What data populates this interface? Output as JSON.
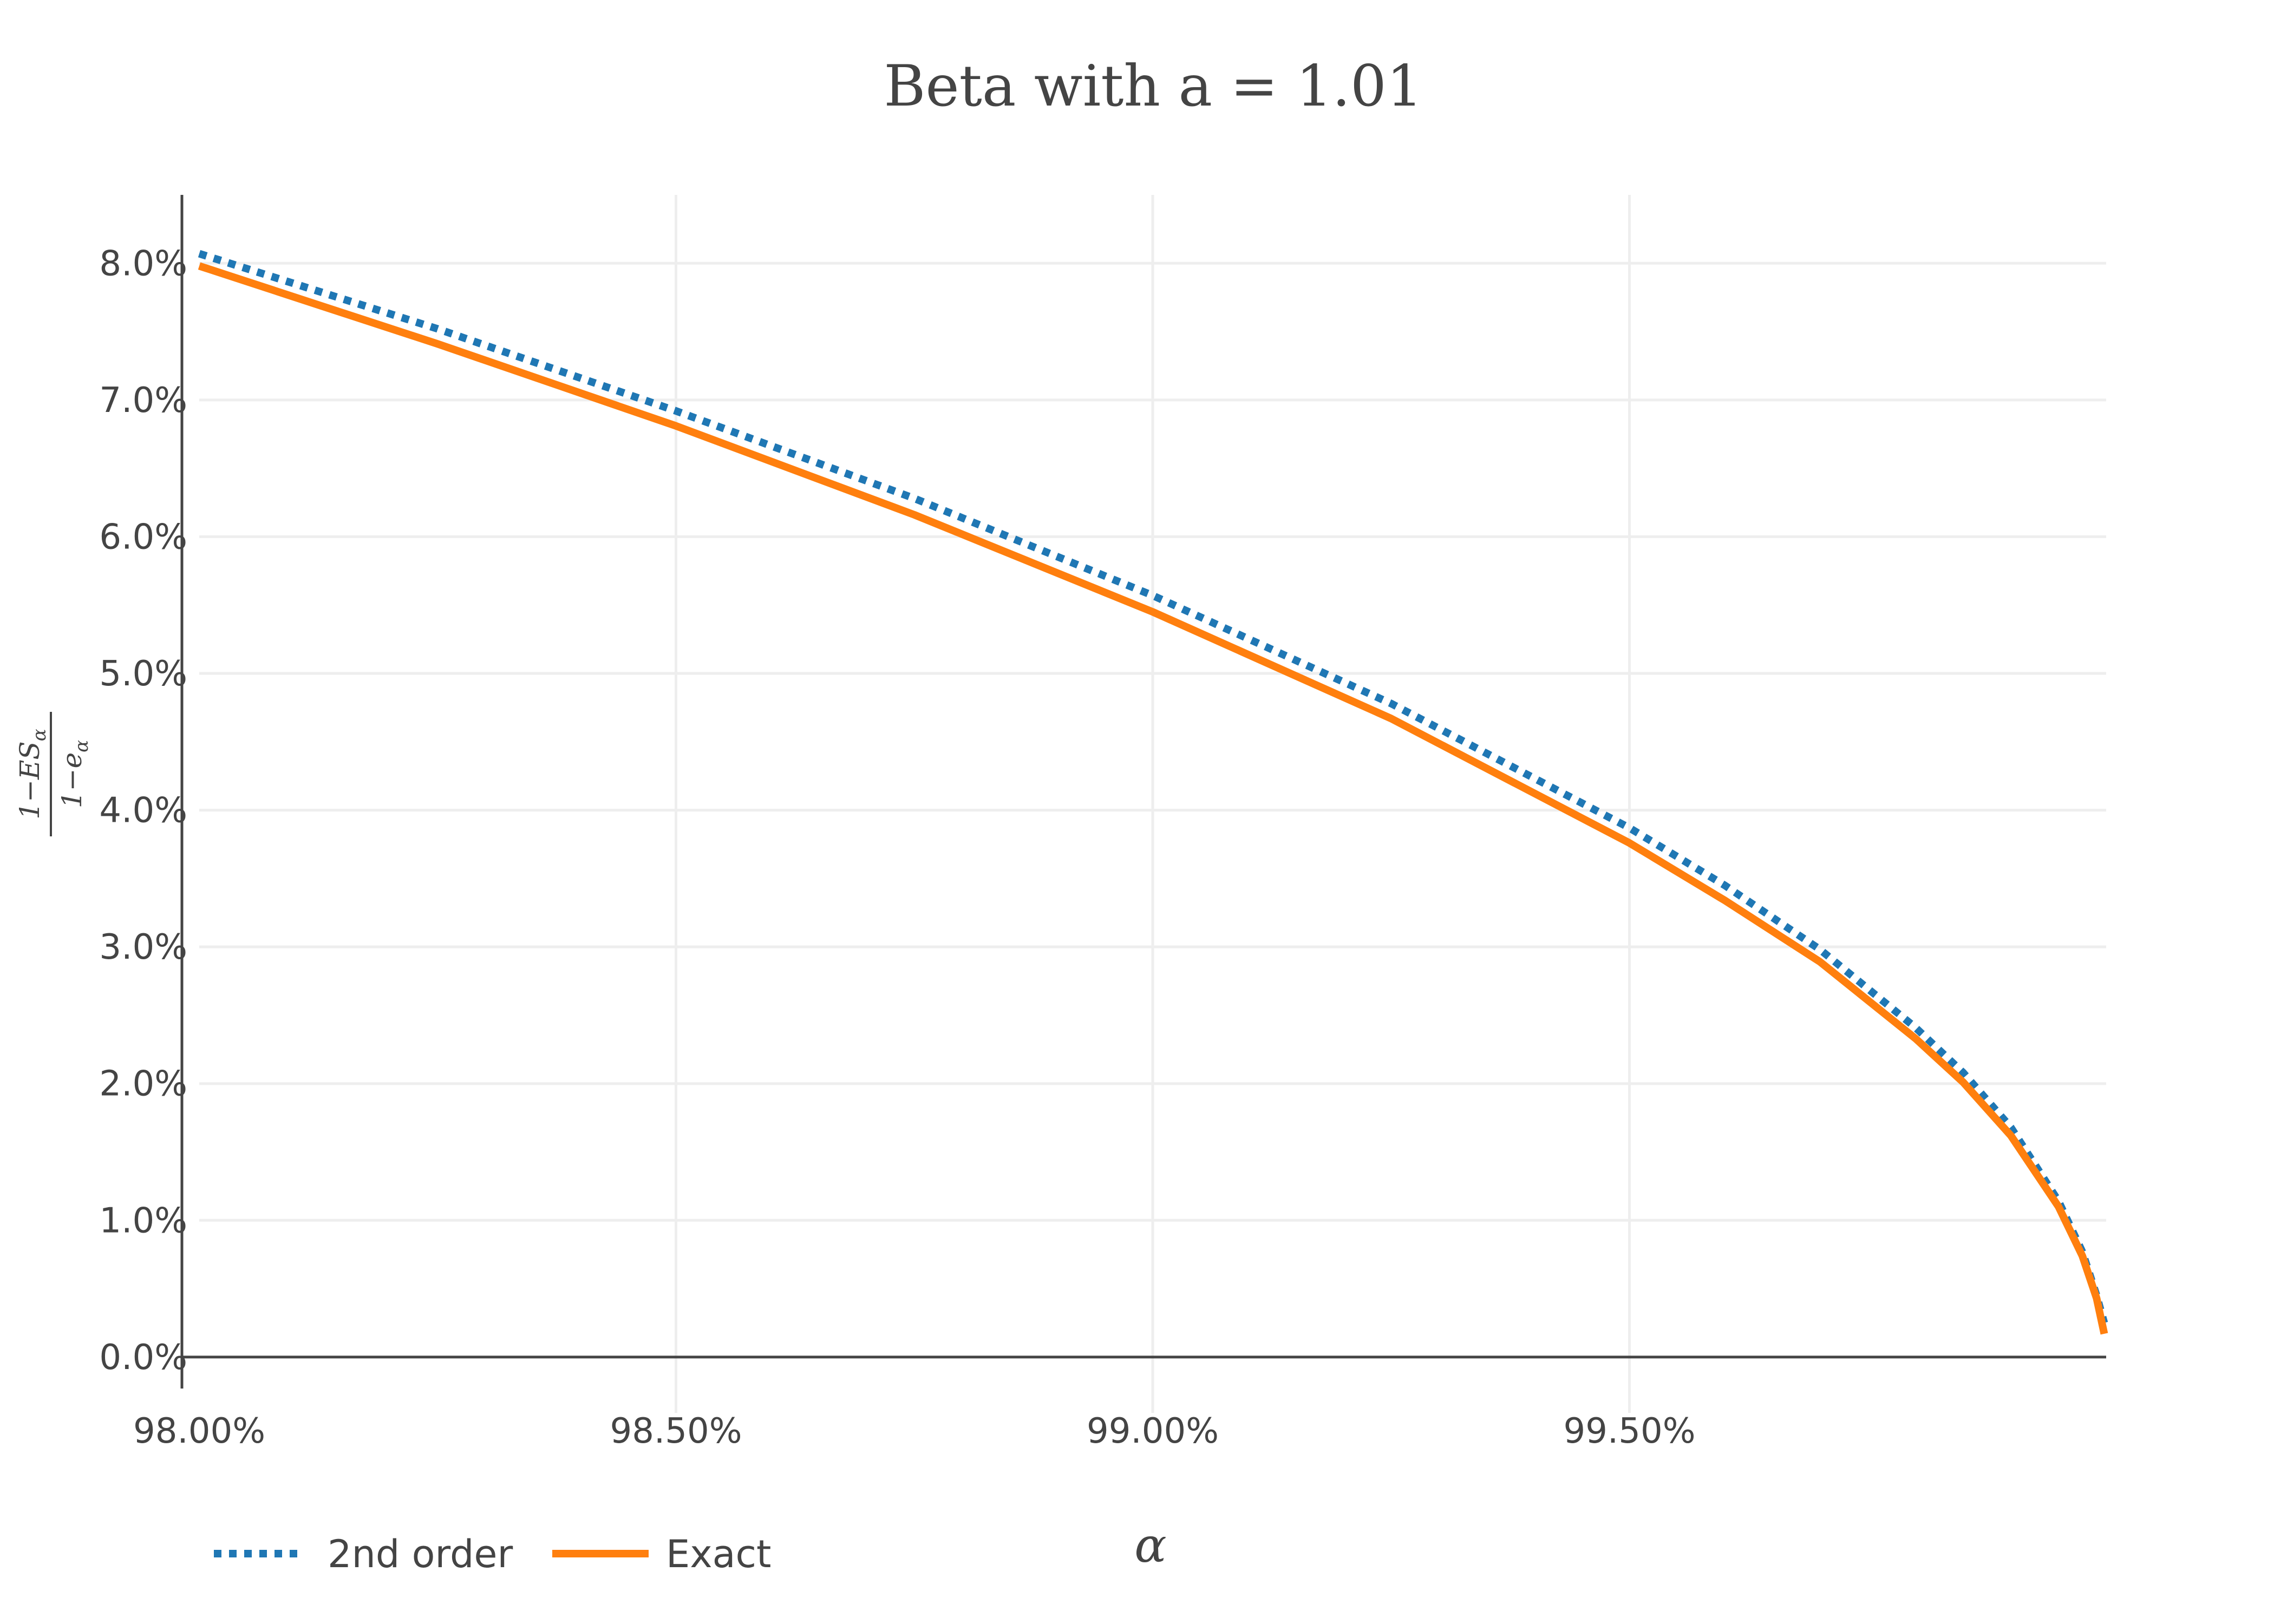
{
  "chart_data": {
    "type": "line",
    "title": "Beta with a = 1.01",
    "xlabel": "α",
    "ylabel_numerator": "1−ES",
    "ylabel_numerator_sub": "α",
    "ylabel_denominator": "1−e",
    "ylabel_denominator_sub": "α",
    "xlim": [
      0.98,
      1.0
    ],
    "ylim": [
      -0.0025,
      0.085
    ],
    "x_ticks": [
      0.98,
      0.985,
      0.99,
      0.995
    ],
    "x_tick_labels": [
      "98.00%",
      "98.50%",
      "99.00%",
      "99.50%"
    ],
    "y_ticks": [
      0.0,
      0.01,
      0.02,
      0.03,
      0.04,
      0.05,
      0.06,
      0.07,
      0.08
    ],
    "y_tick_labels": [
      "0.0%",
      "1.0%",
      "2.0%",
      "3.0%",
      "4.0%",
      "5.0%",
      "6.0%",
      "7.0%",
      "8.0%"
    ],
    "grid": true,
    "legend_position": "bottom-left",
    "series": [
      {
        "name": "2nd order",
        "color": "#1f77b4",
        "dash": "dot",
        "x": [
          0.98,
          0.9825,
          0.985,
          0.9875,
          0.99,
          0.9925,
          0.995,
          0.996,
          0.997,
          0.998,
          0.9985,
          0.999,
          0.9995,
          0.99975,
          0.9999,
          0.99998
        ],
        "y": [
          0.0807,
          0.0752,
          0.0692,
          0.0628,
          0.0557,
          0.0478,
          0.0387,
          0.0345,
          0.0298,
          0.0241,
          0.0208,
          0.0168,
          0.0114,
          0.0077,
          0.0045,
          0.0025
        ]
      },
      {
        "name": "Exact",
        "color": "#ff7f0e",
        "dash": "solid",
        "x": [
          0.98,
          0.9825,
          0.985,
          0.9875,
          0.99,
          0.9925,
          0.995,
          0.996,
          0.997,
          0.998,
          0.9985,
          0.999,
          0.9995,
          0.99975,
          0.9999,
          0.99998
        ],
        "y": [
          0.0798,
          0.0741,
          0.0681,
          0.0616,
          0.0545,
          0.0467,
          0.0376,
          0.0334,
          0.0289,
          0.0233,
          0.0201,
          0.0162,
          0.011,
          0.0074,
          0.0043,
          0.0017
        ]
      }
    ]
  }
}
